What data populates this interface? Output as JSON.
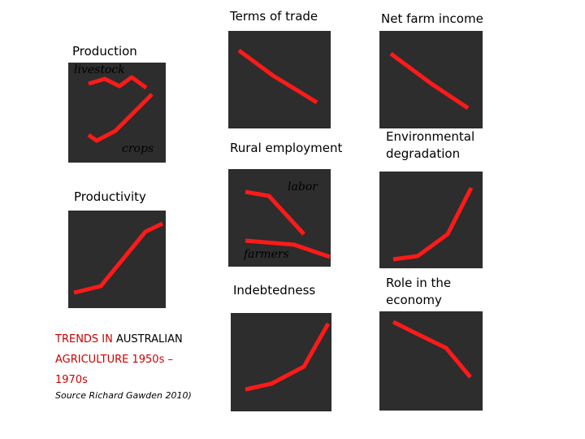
{
  "labels": {
    "terms_of_trade": "Terms of trade",
    "net_farm_income": "Net farm income",
    "production": "Production",
    "livestock": "livestock",
    "crops": "crops",
    "rural_employment": "Rural employment",
    "environmental_line1": "Environmental",
    "environmental_line2": "degradation",
    "productivity": "Productivity",
    "labor": "labor",
    "farmers": "farmers",
    "indebtedness": "Indebtedness",
    "role_line1": "Role in the",
    "role_line2": "economy"
  },
  "title": {
    "line1_red": "TRENDS IN ",
    "line1_black": "AUSTRALIAN",
    "line2": "AGRICULTURE 1950s –",
    "line3": "1970s",
    "source": "Source Richard Gawden 2010)"
  },
  "colors": {
    "line": "#ff1a1a",
    "panel": "#2d2d2d",
    "title_red": "#cc0000"
  }
}
